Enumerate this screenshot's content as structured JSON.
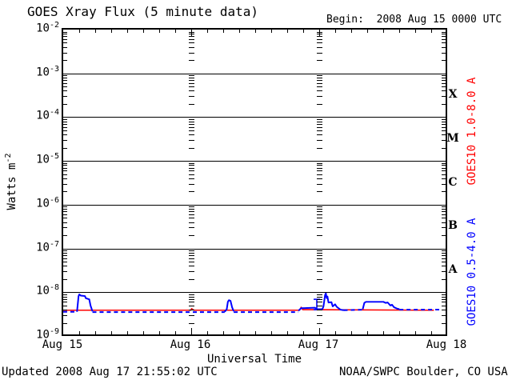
{
  "header": {
    "title": "GOES Xray Flux (5 minute data)",
    "begin_label": "Begin:  2008 Aug 15 0000 UTC"
  },
  "footer": {
    "updated": "Updated 2008 Aug 17 21:55:02 UTC",
    "credit": "NOAA/SWPC Boulder, CO USA"
  },
  "axes": {
    "xlabel": "Universal Time",
    "ylabel_base": "Watts m",
    "ylabel_exp": "-2"
  },
  "right_panel": {
    "long_label": "GOES10 1.0-8.0 A",
    "short_label": "GOES10 0.5-4.0 A",
    "flare_classes": [
      {
        "label": "X",
        "mid_exp": -3.5
      },
      {
        "label": "M",
        "mid_exp": -4.5
      },
      {
        "label": "C",
        "mid_exp": -5.5
      },
      {
        "label": "B",
        "mid_exp": -6.5
      },
      {
        "label": "A",
        "mid_exp": -7.5
      }
    ]
  },
  "colors": {
    "long_series": "#ff0000",
    "short_series": "#0000ff",
    "axis": "#000000",
    "background": "#ffffff"
  },
  "chart_data": {
    "type": "line",
    "title": "GOES Xray Flux (5 minute data)",
    "xlabel": "Universal Time",
    "ylabel": "Watts m^-2",
    "x_unit": "hours since 2008 Aug 15 0000 UTC",
    "xlim": [
      0,
      72
    ],
    "y_scale": "log",
    "ylim": [
      1e-09,
      0.01
    ],
    "grid": {
      "horizontal_decades": true,
      "vertical_day_tick_columns_t": [
        24,
        48
      ]
    },
    "hour_tick_interval": 3,
    "x_ticks": [
      {
        "label": "Aug 15",
        "t": 0
      },
      {
        "label": "Aug 16",
        "t": 24
      },
      {
        "label": "Aug 17",
        "t": 48
      },
      {
        "label": "Aug 18",
        "t": 72
      }
    ],
    "y_ticks": [
      {
        "base": "10",
        "exp": "-2"
      },
      {
        "base": "10",
        "exp": "-3"
      },
      {
        "base": "10",
        "exp": "-4"
      },
      {
        "base": "10",
        "exp": "-5"
      },
      {
        "base": "10",
        "exp": "-6"
      },
      {
        "base": "10",
        "exp": "-7"
      },
      {
        "base": "10",
        "exp": "-8"
      },
      {
        "base": "10",
        "exp": "-9"
      }
    ],
    "series": [
      {
        "name": "GOES10 1.0-8.0 A",
        "color": "#ff0000",
        "width": 1.6,
        "segments": [
          {
            "dashed": false,
            "points": [
              [
                0,
                3.6e-09
              ],
              [
                24.0,
                3.6e-09
              ],
              [
                24.2,
                3.9e-09
              ],
              [
                24.6,
                3.6e-09
              ],
              [
                44.5,
                3.6e-09
              ],
              [
                44.8,
                4.2e-09
              ],
              [
                45.1,
                3.7e-09
              ],
              [
                69.8,
                3.6e-09
              ]
            ]
          }
        ]
      },
      {
        "name": "GOES10 0.5-4.0 A",
        "color": "#0000ff",
        "width": 2,
        "segments": [
          {
            "dashed": true,
            "points": [
              [
                0,
                3.3e-09
              ],
              [
                2.6,
                3.3e-09
              ]
            ]
          },
          {
            "dashed": false,
            "points": [
              [
                2.6,
                3.3e-09
              ],
              [
                2.75,
                5e-09
              ],
              [
                2.9,
                7.6e-09
              ],
              [
                3.05,
                8.3e-09
              ],
              [
                3.3,
                7.8e-09
              ],
              [
                4.1,
                7.6e-09
              ],
              [
                4.25,
                6.8e-09
              ],
              [
                4.9,
                6.4e-09
              ],
              [
                5.05,
                5.2e-09
              ],
              [
                5.15,
                4.6e-09
              ],
              [
                5.5,
                3.4e-09
              ]
            ]
          },
          {
            "dashed": true,
            "points": [
              [
                5.5,
                3.25e-09
              ],
              [
                30.4,
                3.25e-09
              ]
            ]
          },
          {
            "dashed": false,
            "points": [
              [
                30.4,
                3.3e-09
              ],
              [
                30.8,
                3.8e-09
              ],
              [
                31.0,
                5.6e-09
              ],
              [
                31.2,
                6.1e-09
              ],
              [
                31.5,
                5.9e-09
              ],
              [
                31.8,
                4.2e-09
              ],
              [
                32.1,
                3.4e-09
              ]
            ]
          },
          {
            "dashed": true,
            "points": [
              [
                32.1,
                3.25e-09
              ],
              [
                44.3,
                3.25e-09
              ]
            ]
          },
          {
            "dashed": false,
            "points": [
              [
                44.3,
                3.5e-09
              ],
              [
                44.8,
                4e-09
              ],
              [
                47.4,
                4.1e-09
              ],
              [
                47.8,
                3.8e-09
              ],
              [
                48.8,
                3.8e-09
              ],
              [
                49.0,
                4.4e-09
              ],
              [
                49.3,
                8e-09
              ],
              [
                49.45,
                8.8e-09
              ],
              [
                49.6,
                6.8e-09
              ],
              [
                49.75,
                7.4e-09
              ],
              [
                49.95,
                5.4e-09
              ],
              [
                50.5,
                5.5e-09
              ],
              [
                50.75,
                4.4e-09
              ],
              [
                51.2,
                4.9e-09
              ],
              [
                51.5,
                4.3e-09
              ],
              [
                52.2,
                3.7e-09
              ],
              [
                52.8,
                3.6e-09
              ]
            ]
          },
          {
            "dashed": true,
            "points": [
              [
                52.8,
                3.6e-09
              ],
              [
                56.4,
                3.7e-09
              ]
            ]
          },
          {
            "dashed": false,
            "points": [
              [
                56.4,
                3.8e-09
              ],
              [
                56.7,
                5.3e-09
              ],
              [
                57.0,
                5.6e-09
              ],
              [
                60.3,
                5.6e-09
              ],
              [
                60.7,
                5.3e-09
              ],
              [
                61.1,
                5.4e-09
              ],
              [
                61.6,
                4.6e-09
              ],
              [
                61.9,
                4.8e-09
              ],
              [
                62.3,
                4.2e-09
              ],
              [
                62.9,
                3.9e-09
              ],
              [
                63.3,
                3.8e-09
              ]
            ]
          },
          {
            "dashed": true,
            "points": [
              [
                63.3,
                3.7e-09
              ],
              [
                70.9,
                3.7e-09
              ]
            ]
          }
        ]
      }
    ],
    "annotations": [
      {
        "type": "error_bar",
        "t": 47.75,
        "y_low": 3.7e-09,
        "y_high": 6.4e-09,
        "color": "#0000ff"
      }
    ]
  }
}
